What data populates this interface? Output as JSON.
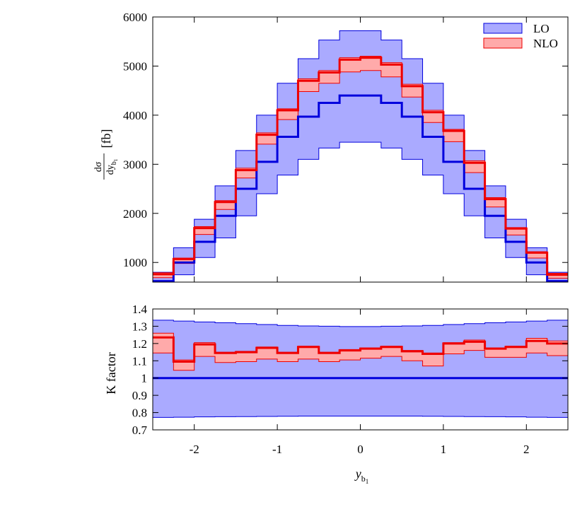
{
  "chart_data": [
    {
      "type": "line",
      "panel": "cross-section",
      "xlim": [
        -2.5,
        2.5
      ],
      "ylim": [
        600,
        6000
      ],
      "yticks": [
        1000,
        2000,
        3000,
        4000,
        5000,
        6000
      ],
      "ytick_labels": [
        "1000",
        "2000",
        "3000",
        "4000",
        "5000",
        "6000"
      ],
      "ylabel": {
        "main": "dσ",
        "denom": "dy",
        "sub": "b",
        "subsub": "1",
        "unit": "[fb]"
      },
      "bin_edges": [
        -2.5,
        -2.25,
        -2.0,
        -1.75,
        -1.5,
        -1.25,
        -1.0,
        -0.75,
        -0.5,
        -0.25,
        0.0,
        0.25,
        0.5,
        0.75,
        1.0,
        1.25,
        1.5,
        1.75,
        2.0,
        2.25,
        2.5
      ],
      "legend_position": "top-right",
      "series": [
        {
          "name": "LO",
          "color": "#0000dd",
          "band_color": "#aaaaff",
          "central": [
            620,
            1000,
            1420,
            1950,
            2500,
            3050,
            3560,
            3970,
            4250,
            4400,
            4400,
            4250,
            3970,
            3560,
            3050,
            2500,
            1950,
            1420,
            1000,
            620
          ],
          "band_low": [
            600,
            750,
            1100,
            1500,
            1950,
            2400,
            2780,
            3100,
            3330,
            3450,
            3450,
            3330,
            3100,
            2780,
            2400,
            1950,
            1500,
            1100,
            750,
            600
          ],
          "band_high": [
            800,
            1300,
            1880,
            2560,
            3280,
            4000,
            4650,
            5150,
            5530,
            5720,
            5720,
            5530,
            5150,
            4650,
            4000,
            3280,
            2560,
            1880,
            1300,
            800
          ]
        },
        {
          "name": "NLO",
          "color": "#ee0000",
          "band_color": "#ffaaaa",
          "central": [
            760,
            1070,
            1700,
            2230,
            2880,
            3600,
            4100,
            4700,
            4870,
            5130,
            5170,
            5030,
            4590,
            4060,
            3680,
            3030,
            2290,
            1690,
            1200,
            750
          ],
          "band_low": [
            690,
            980,
            1570,
            2080,
            2720,
            3410,
            3910,
            4480,
            4650,
            4880,
            4910,
            4780,
            4370,
            3850,
            3460,
            2830,
            2130,
            1560,
            1090,
            680
          ],
          "band_high": [
            790,
            1090,
            1730,
            2260,
            2920,
            3640,
            4130,
            4740,
            4910,
            5170,
            5200,
            5070,
            4630,
            4100,
            3710,
            3070,
            2320,
            1710,
            1220,
            780
          ]
        }
      ]
    },
    {
      "type": "line",
      "panel": "K factor",
      "xlim": [
        -2.5,
        2.5
      ],
      "ylim": [
        0.7,
        1.4
      ],
      "xlabel": {
        "main": "y",
        "sub": "b",
        "subsub": "1"
      },
      "ylabel": "K factor",
      "xticks": [
        -2,
        -1,
        0,
        1,
        2
      ],
      "xtick_labels": [
        "-2",
        "-1",
        "0",
        "1",
        "2"
      ],
      "yticks": [
        0.7,
        0.8,
        0.9,
        1.0,
        1.1,
        1.2,
        1.3,
        1.4
      ],
      "ytick_labels": [
        "0.7",
        "0.8",
        "0.9",
        "1",
        "1.1",
        "1.2",
        "1.3",
        "1.4"
      ],
      "bin_edges": [
        -2.5,
        -2.25,
        -2.0,
        -1.75,
        -1.5,
        -1.25,
        -1.0,
        -0.75,
        -0.5,
        -0.25,
        0.0,
        0.25,
        0.5,
        0.75,
        1.0,
        1.25,
        1.5,
        1.75,
        2.0,
        2.25,
        2.5
      ],
      "series": [
        {
          "name": "LO",
          "color": "#0000dd",
          "band_color": "#aaaaff",
          "central": [
            1,
            1,
            1,
            1,
            1,
            1,
            1,
            1,
            1,
            1,
            1,
            1,
            1,
            1,
            1,
            1,
            1,
            1,
            1,
            1
          ],
          "band_low": [
            0.772,
            0.773,
            0.775,
            0.776,
            0.777,
            0.778,
            0.779,
            0.78,
            0.78,
            0.78,
            0.78,
            0.78,
            0.78,
            0.779,
            0.778,
            0.777,
            0.776,
            0.775,
            0.773,
            0.772
          ],
          "band_high": [
            1.335,
            1.33,
            1.325,
            1.32,
            1.315,
            1.31,
            1.305,
            1.302,
            1.3,
            1.298,
            1.298,
            1.3,
            1.302,
            1.305,
            1.31,
            1.315,
            1.32,
            1.325,
            1.33,
            1.335
          ]
        },
        {
          "name": "NLO",
          "color": "#ee0000",
          "band_color": "#ffaaaa",
          "central": [
            1.235,
            1.095,
            1.195,
            1.145,
            1.15,
            1.175,
            1.145,
            1.18,
            1.145,
            1.16,
            1.17,
            1.18,
            1.155,
            1.14,
            1.2,
            1.21,
            1.17,
            1.18,
            1.215,
            1.2
          ],
          "band_low": [
            1.145,
            1.045,
            1.125,
            1.09,
            1.095,
            1.11,
            1.095,
            1.11,
            1.095,
            1.105,
            1.115,
            1.125,
            1.1,
            1.07,
            1.14,
            1.16,
            1.12,
            1.12,
            1.145,
            1.13
          ],
          "band_high": [
            1.26,
            1.105,
            1.205,
            1.15,
            1.155,
            1.18,
            1.15,
            1.185,
            1.15,
            1.165,
            1.175,
            1.185,
            1.16,
            1.145,
            1.205,
            1.22,
            1.175,
            1.185,
            1.23,
            1.215
          ]
        }
      ]
    }
  ]
}
